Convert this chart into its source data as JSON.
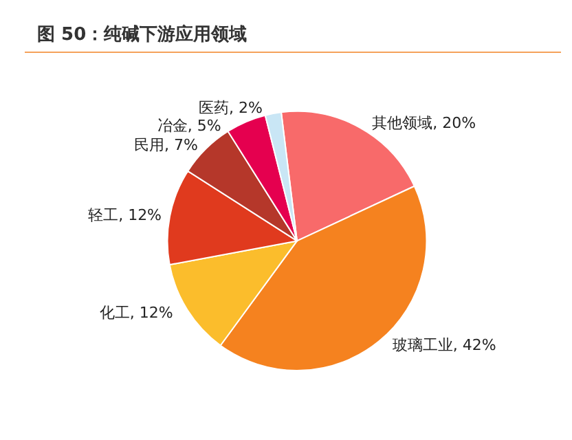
{
  "chart_data": {
    "type": "pie",
    "title": "图 50：纯碱下游应用领域",
    "categories": [
      "其他领域",
      "玻璃工业",
      "化工",
      "轻工",
      "民用",
      "冶金",
      "医药"
    ],
    "values": [
      20,
      42,
      12,
      12,
      7,
      5,
      2
    ],
    "colors": [
      "#f86a6a",
      "#f5821f",
      "#fbbd2c",
      "#e03a1e",
      "#b5372a",
      "#e5004f",
      "#c9e6f5"
    ],
    "value_labels": [
      "20%",
      "42%",
      "12%",
      "12%",
      "7%",
      "5%",
      "2%"
    ],
    "legend": false
  }
}
